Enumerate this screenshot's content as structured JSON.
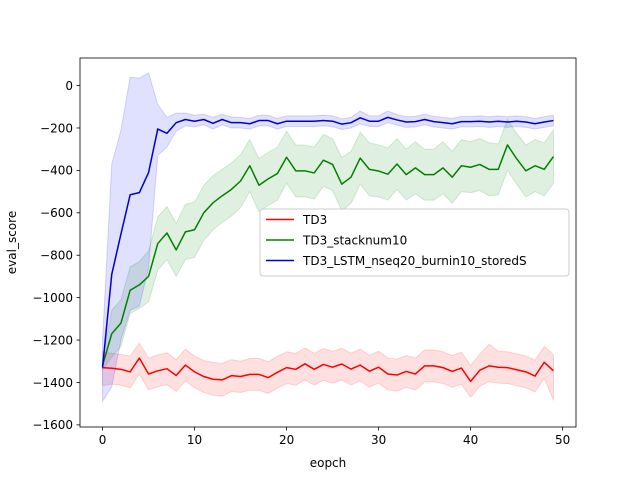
{
  "chart_data": {
    "type": "line",
    "title": "",
    "xlabel": "eopch",
    "ylabel": "eval_score",
    "xlim": [
      -2.45,
      51.45
    ],
    "ylim": [
      -1610,
      130
    ],
    "xticks": [
      0,
      10,
      20,
      30,
      40,
      50
    ],
    "yticks": [
      -1600,
      -1400,
      -1200,
      -1000,
      -800,
      -600,
      -400,
      -200,
      0
    ],
    "grid": false,
    "legend_position": "center-right",
    "x": [
      0,
      1,
      2,
      3,
      4,
      5,
      6,
      7,
      8,
      9,
      10,
      11,
      12,
      13,
      14,
      15,
      16,
      17,
      18,
      19,
      20,
      21,
      22,
      23,
      24,
      25,
      26,
      27,
      28,
      29,
      30,
      31,
      32,
      33,
      34,
      35,
      36,
      37,
      38,
      39,
      40,
      41,
      42,
      43,
      44,
      45,
      46,
      47,
      48,
      49
    ],
    "series": [
      {
        "name": "TD3",
        "color": "#ff0000",
        "band_color": "#ff0000",
        "values": [
          -1330,
          -1333,
          -1338,
          -1350,
          -1285,
          -1360,
          -1345,
          -1335,
          -1367,
          -1318,
          -1350,
          -1372,
          -1385,
          -1388,
          -1368,
          -1372,
          -1362,
          -1362,
          -1377,
          -1352,
          -1330,
          -1338,
          -1312,
          -1338,
          -1315,
          -1328,
          -1313,
          -1337,
          -1318,
          -1347,
          -1328,
          -1360,
          -1365,
          -1348,
          -1360,
          -1322,
          -1322,
          -1330,
          -1348,
          -1332,
          -1395,
          -1342,
          -1322,
          -1328,
          -1330,
          -1340,
          -1350,
          -1370,
          -1305,
          -1345
        ],
        "upper": [
          -1255,
          -1263,
          -1268,
          -1275,
          -1215,
          -1285,
          -1270,
          -1260,
          -1292,
          -1243,
          -1275,
          -1297,
          -1305,
          -1310,
          -1293,
          -1300,
          -1287,
          -1287,
          -1302,
          -1277,
          -1255,
          -1263,
          -1237,
          -1263,
          -1240,
          -1253,
          -1238,
          -1262,
          -1243,
          -1272,
          -1253,
          -1285,
          -1290,
          -1273,
          -1285,
          -1247,
          -1247,
          -1255,
          -1273,
          -1257,
          -1320,
          -1267,
          -1220,
          -1253,
          -1255,
          -1265,
          -1275,
          -1295,
          -1230,
          -1270
        ],
        "lower": [
          -1415,
          -1408,
          -1413,
          -1425,
          -1360,
          -1435,
          -1420,
          -1410,
          -1442,
          -1393,
          -1425,
          -1447,
          -1460,
          -1465,
          -1443,
          -1447,
          -1437,
          -1437,
          -1452,
          -1427,
          -1405,
          -1413,
          -1387,
          -1413,
          -1390,
          -1403,
          -1388,
          -1412,
          -1393,
          -1422,
          -1403,
          -1435,
          -1440,
          -1423,
          -1435,
          -1397,
          -1397,
          -1405,
          -1423,
          -1407,
          -1470,
          -1417,
          -1397,
          -1403,
          -1405,
          -1415,
          -1425,
          -1445,
          -1380,
          -1485
        ]
      },
      {
        "name": "TD3_stacknum10",
        "color": "#008000",
        "band_color": "#008000",
        "values": [
          -1320,
          -1170,
          -1120,
          -965,
          -940,
          -900,
          -745,
          -695,
          -775,
          -690,
          -680,
          -600,
          -553,
          -520,
          -490,
          -450,
          -378,
          -470,
          -440,
          -415,
          -338,
          -402,
          -402,
          -412,
          -352,
          -372,
          -465,
          -432,
          -342,
          -395,
          -403,
          -418,
          -370,
          -420,
          -388,
          -420,
          -420,
          -388,
          -432,
          -378,
          -385,
          -372,
          -395,
          -395,
          -280,
          -345,
          -402,
          -378,
          -395,
          -335
        ],
        "upper": [
          -1300,
          -1060,
          -1010,
          -855,
          -830,
          -780,
          -620,
          -570,
          -650,
          -560,
          -550,
          -470,
          -425,
          -395,
          -365,
          -325,
          -255,
          -345,
          -315,
          -290,
          -215,
          -280,
          -280,
          -290,
          -230,
          -250,
          -340,
          -310,
          -220,
          -270,
          -280,
          -295,
          -250,
          -300,
          -265,
          -300,
          -300,
          -265,
          -310,
          -255,
          -265,
          -250,
          -270,
          -275,
          -160,
          -225,
          -280,
          -255,
          -270,
          -210
        ],
        "lower": [
          -1340,
          -1280,
          -1230,
          -1075,
          -1050,
          -1020,
          -870,
          -820,
          -900,
          -820,
          -810,
          -730,
          -680,
          -645,
          -615,
          -575,
          -500,
          -595,
          -565,
          -540,
          -460,
          -525,
          -525,
          -535,
          -475,
          -495,
          -590,
          -555,
          -465,
          -520,
          -525,
          -540,
          -490,
          -540,
          -510,
          -540,
          -540,
          -510,
          -555,
          -500,
          -505,
          -495,
          -520,
          -515,
          -400,
          -465,
          -525,
          -500,
          -520,
          -460
        ]
      },
      {
        "name": "TD3_LSTM_nseq20_burnin10_storedS",
        "color": "#0000cc",
        "band_color": "#0000ff",
        "values": [
          -1330,
          -890,
          -700,
          -515,
          -505,
          -410,
          -205,
          -225,
          -175,
          -160,
          -168,
          -160,
          -178,
          -160,
          -175,
          -175,
          -180,
          -165,
          -165,
          -180,
          -168,
          -168,
          -168,
          -168,
          -165,
          -168,
          -182,
          -175,
          -152,
          -168,
          -168,
          -150,
          -162,
          -172,
          -170,
          -160,
          -170,
          -175,
          -180,
          -170,
          -170,
          -168,
          -172,
          -168,
          -172,
          -168,
          -172,
          -180,
          -172,
          -165
        ],
        "upper": [
          -1200,
          -370,
          -210,
          40,
          35,
          60,
          -90,
          -150,
          -130,
          -130,
          -140,
          -135,
          -150,
          -135,
          -148,
          -150,
          -155,
          -140,
          -140,
          -155,
          -143,
          -143,
          -143,
          -143,
          -140,
          -143,
          -157,
          -150,
          -120,
          -143,
          -143,
          -120,
          -137,
          -147,
          -145,
          -135,
          -145,
          -150,
          -155,
          -145,
          -145,
          -143,
          -147,
          -143,
          -147,
          -143,
          -147,
          -155,
          -147,
          -140
        ],
        "lower": [
          -1490,
          -1420,
          -1200,
          -1060,
          -1040,
          -860,
          -330,
          -290,
          -215,
          -190,
          -195,
          -185,
          -205,
          -185,
          -200,
          -200,
          -205,
          -190,
          -190,
          -205,
          -193,
          -193,
          -193,
          -193,
          -190,
          -193,
          -207,
          -200,
          -180,
          -193,
          -193,
          -175,
          -187,
          -197,
          -195,
          -185,
          -195,
          -200,
          -205,
          -195,
          -195,
          -193,
          -197,
          -193,
          -197,
          -193,
          -197,
          -205,
          -197,
          -190
        ]
      }
    ]
  }
}
